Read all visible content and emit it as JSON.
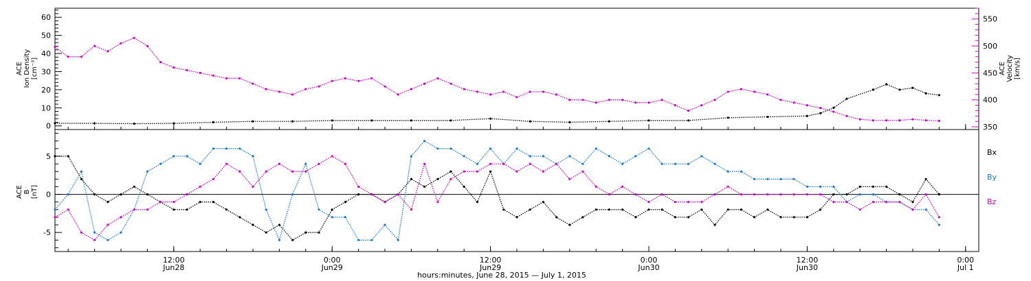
{
  "colors": {
    "density": "#000000",
    "velocity": "#cc00cc",
    "bx": "#000000",
    "by": "#1177dd",
    "bz": "#cc00cc"
  },
  "x_axis": {
    "label": "hours:minutes, June 28, 2015 — July  1, 2015",
    "ticks": [
      {
        "hour": 12,
        "time": "12:00",
        "day": "Jun28"
      },
      {
        "hour": 24,
        "time": "0:00",
        "day": "Jun29"
      },
      {
        "hour": 36,
        "time": "12:00",
        "day": "Jun29"
      },
      {
        "hour": 48,
        "time": "0:00",
        "day": "Jun30"
      },
      {
        "hour": 60,
        "time": "12:00",
        "day": "Jun30"
      },
      {
        "hour": 72,
        "time": "0:00",
        "day": "Jul 1"
      }
    ]
  },
  "chart_data": [
    {
      "type": "scatter",
      "xlim": [
        3,
        73
      ],
      "series": [
        {
          "axis": "left",
          "ylabel": [
            "ACE",
            "Ion Density",
            "[cm⁻³]"
          ],
          "ylim": [
            -2,
            65
          ],
          "yticks": [
            0,
            10,
            20,
            30,
            40,
            50,
            60
          ],
          "x": [
            3,
            6,
            9,
            12,
            15,
            18,
            21,
            24,
            27,
            30,
            33,
            36,
            39,
            42,
            45,
            48,
            51,
            54,
            57,
            60,
            61,
            62,
            63,
            65,
            66,
            67,
            68,
            69,
            70
          ],
          "values": [
            1.5,
            1.4,
            1.2,
            1.4,
            2,
            2.5,
            2.5,
            3,
            3,
            3,
            3,
            4,
            2.5,
            2,
            2.5,
            3,
            3,
            4.5,
            5,
            5.5,
            7,
            10,
            15,
            20,
            23,
            20,
            21,
            18,
            17
          ]
        },
        {
          "axis": "right",
          "ylabel": [
            "ACE",
            "Velocity",
            "[km/s]"
          ],
          "ylim": [
            345,
            570
          ],
          "yticks": [
            350,
            400,
            450,
            500,
            550
          ],
          "x": [
            3,
            4,
            5,
            6,
            7,
            8,
            9,
            10,
            11,
            12,
            13,
            14,
            15,
            16,
            17,
            18,
            19,
            20,
            21,
            22,
            23,
            24,
            25,
            26,
            27,
            28,
            29,
            30,
            31,
            32,
            33,
            34,
            35,
            36,
            37,
            38,
            39,
            40,
            41,
            42,
            43,
            44,
            45,
            46,
            47,
            48,
            49,
            50,
            51,
            52,
            53,
            54,
            55,
            56,
            57,
            58,
            59,
            60,
            61,
            62,
            63,
            64,
            65,
            66,
            67,
            68,
            69,
            70
          ],
          "values": [
            498,
            480,
            480,
            500,
            490,
            505,
            515,
            500,
            470,
            460,
            455,
            450,
            445,
            440,
            440,
            430,
            420,
            415,
            410,
            420,
            425,
            435,
            440,
            435,
            440,
            425,
            410,
            420,
            430,
            440,
            430,
            420,
            415,
            410,
            415,
            405,
            415,
            415,
            410,
            400,
            400,
            395,
            400,
            400,
            395,
            395,
            400,
            390,
            380,
            390,
            400,
            415,
            420,
            415,
            410,
            400,
            395,
            390,
            385,
            378,
            370,
            364,
            362,
            362,
            362,
            364,
            362,
            361
          ]
        }
      ]
    },
    {
      "type": "scatter",
      "xlim": [
        3,
        73
      ],
      "ylabel": [
        "ACE",
        "B",
        "[nT]"
      ],
      "ylim": [
        -7.5,
        8.5
      ],
      "yticks": [
        -5,
        0,
        5
      ],
      "zero_line": true,
      "series": [
        {
          "name": "Bx",
          "x": [
            3,
            4,
            5,
            6,
            7,
            8,
            9,
            10,
            11,
            12,
            13,
            14,
            15,
            16,
            17,
            18,
            19,
            20,
            21,
            22,
            23,
            24,
            25,
            26,
            27,
            28,
            29,
            30,
            31,
            32,
            33,
            34,
            35,
            36,
            37,
            38,
            39,
            40,
            41,
            42,
            43,
            44,
            45,
            46,
            47,
            48,
            49,
            50,
            51,
            52,
            53,
            54,
            55,
            56,
            57,
            58,
            59,
            60,
            61,
            62,
            63,
            64,
            65,
            66,
            67,
            68,
            69,
            70
          ],
          "values": [
            5,
            5,
            2,
            0,
            -1,
            0,
            1,
            0,
            -1,
            -2,
            -2,
            -1,
            -1,
            -2,
            -3,
            -4,
            -5,
            -4,
            -6,
            -5,
            -5,
            -2,
            -1,
            0,
            0,
            -1,
            0,
            2,
            1,
            2,
            3,
            1,
            -1,
            3,
            -2,
            -3,
            -2,
            -1,
            -3,
            -4,
            -3,
            -2,
            -2,
            -2,
            -3,
            -2,
            -2,
            -3,
            -3,
            -2,
            -4,
            -2,
            -2,
            -3,
            -2,
            -3,
            -3,
            -3,
            -2,
            0,
            0,
            1,
            1,
            1,
            0,
            -1,
            2,
            0
          ]
        },
        {
          "name": "By",
          "x": [
            3,
            4,
            5,
            6,
            7,
            8,
            9,
            10,
            11,
            12,
            13,
            14,
            15,
            16,
            17,
            18,
            19,
            20,
            21,
            22,
            23,
            24,
            25,
            26,
            27,
            28,
            29,
            30,
            31,
            32,
            33,
            34,
            35,
            36,
            37,
            38,
            39,
            40,
            41,
            42,
            43,
            44,
            45,
            46,
            47,
            48,
            49,
            50,
            51,
            52,
            53,
            54,
            55,
            56,
            57,
            58,
            59,
            60,
            61,
            62,
            63,
            64,
            65,
            66,
            67,
            68,
            69,
            70
          ],
          "values": [
            -2,
            0,
            3,
            -5,
            -6,
            -5,
            -2,
            3,
            4,
            5,
            5,
            4,
            6,
            6,
            6,
            5,
            -2,
            -6,
            0,
            4,
            -2,
            -3,
            -3,
            -6,
            -6,
            -4,
            -6,
            5,
            7,
            6,
            6,
            5,
            4,
            6,
            4,
            6,
            5,
            5,
            4,
            5,
            4,
            6,
            5,
            4,
            5,
            6,
            4,
            4,
            4,
            5,
            4,
            3,
            3,
            2,
            2,
            2,
            2,
            1,
            1,
            1,
            -1,
            0,
            0,
            -1,
            -1,
            -2,
            -2,
            -4
          ]
        },
        {
          "name": "Bz",
          "x": [
            3,
            4,
            5,
            6,
            7,
            8,
            9,
            10,
            11,
            12,
            13,
            14,
            15,
            16,
            17,
            18,
            19,
            20,
            21,
            22,
            23,
            24,
            25,
            26,
            27,
            28,
            29,
            30,
            31,
            32,
            33,
            34,
            35,
            36,
            37,
            38,
            39,
            40,
            41,
            42,
            43,
            44,
            45,
            46,
            47,
            48,
            49,
            50,
            51,
            52,
            53,
            54,
            55,
            56,
            57,
            58,
            59,
            60,
            61,
            62,
            63,
            64,
            65,
            66,
            67,
            68,
            69,
            70
          ],
          "values": [
            -3,
            -2,
            -5,
            -6,
            -4,
            -3,
            -2,
            -2,
            -1,
            -1,
            0,
            1,
            2,
            4,
            3,
            1,
            3,
            4,
            3,
            3,
            4,
            5,
            4,
            1,
            0,
            -1,
            0,
            -2,
            4,
            -1,
            2,
            3,
            3,
            4,
            4,
            3,
            4,
            3,
            4,
            2,
            3,
            1,
            0,
            1,
            0,
            -1,
            0,
            -1,
            -1,
            -1,
            0,
            1,
            0,
            0,
            0,
            0,
            0,
            0,
            0,
            -1,
            -1,
            -2,
            -1,
            -1,
            -1,
            -2,
            0,
            -3
          ]
        }
      ],
      "legend": {
        "placement": "right",
        "labels": [
          "Bx",
          "By",
          "Bz"
        ]
      }
    }
  ]
}
